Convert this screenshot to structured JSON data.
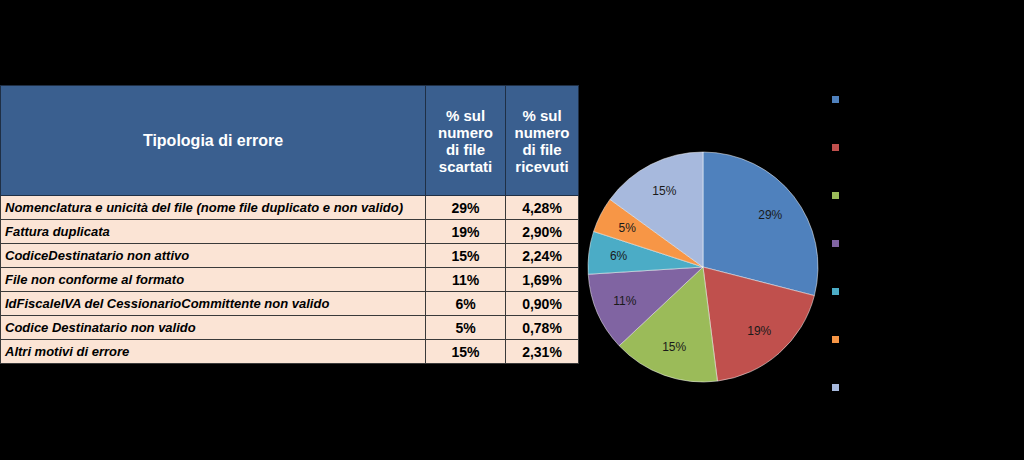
{
  "table": {
    "header": [
      "Tipologia di errore",
      "% sul numero di file scartati",
      "% sul numero di file ricevuti"
    ],
    "rows": [
      [
        "Nomenclatura e unicità del file (nome file duplicato e non valido)",
        "29%",
        "4,28%"
      ],
      [
        "Fattura duplicata",
        "19%",
        "2,90%"
      ],
      [
        "CodiceDestinatario non attivo",
        "15%",
        "2,24%"
      ],
      [
        "File non conforme al formato",
        "11%",
        "1,69%"
      ],
      [
        "IdFiscaleIVA del CessionarioCommittente non valido",
        "6%",
        "0,90%"
      ],
      [
        "Codice Destinatario non valido",
        "5%",
        "0,78%"
      ],
      [
        "Altri motivi di errore",
        "15%",
        "2,31%"
      ]
    ]
  },
  "chart_data": {
    "type": "pie",
    "categories": [
      null,
      null,
      null,
      null,
      null,
      null,
      null
    ],
    "values": [
      29,
      19,
      15,
      11,
      6,
      5,
      15
    ],
    "value_labels": [
      "29%",
      "19%",
      "15%",
      "11%",
      "6%",
      "5%",
      "15%"
    ],
    "colors": [
      "#4f81bd",
      "#c0504d",
      "#9bbb59",
      "#8064a2",
      "#4bacc6",
      "#f79646",
      "#a7b9dd"
    ],
    "data_labels": true,
    "legend": "right"
  }
}
